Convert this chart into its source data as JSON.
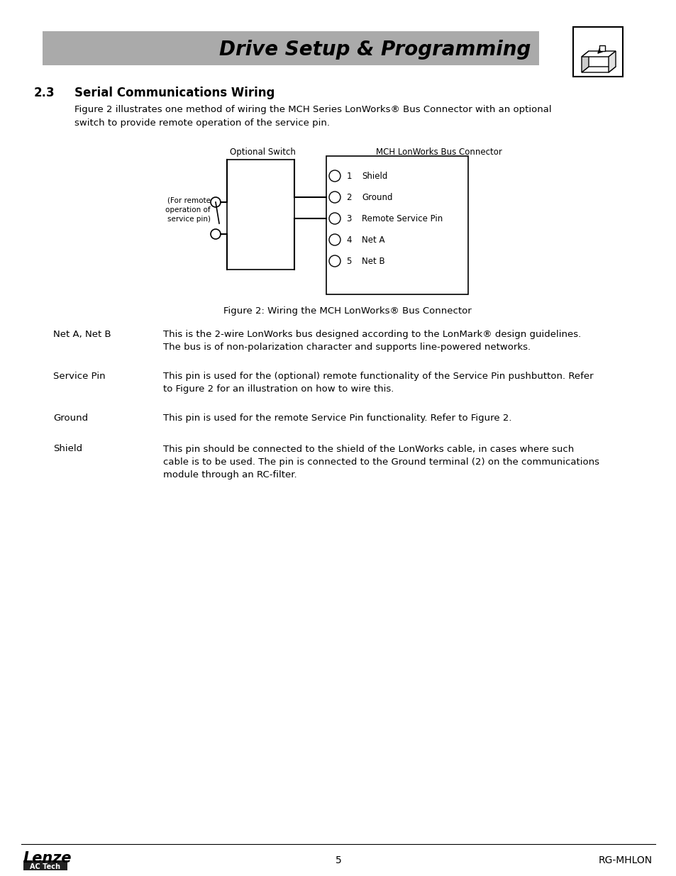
{
  "page_bg": "#ffffff",
  "header_bg": "#aaaaaa",
  "header_text": "Drive Setup & Programming",
  "header_text_color": "#000000",
  "section_number": "2.3",
  "section_title": "Serial Communications Wiring",
  "intro_text": "Figure 2 illustrates one method of wiring the MCH Series LonWorks® Bus Connector with an optional\nswitch to provide remote operation of the service pin.",
  "figure_caption": "Figure 2: Wiring the MCH LonWorks® Bus Connector",
  "optional_switch_label": "Optional Switch",
  "connector_label": "MCH LonWorks Bus Connector",
  "for_remote_label": "(For remote\noperation of\nservice pin)",
  "connector_pins": [
    {
      "num": "1",
      "name": "Shield"
    },
    {
      "num": "2",
      "name": "Ground"
    },
    {
      "num": "3",
      "name": "Remote Service Pin"
    },
    {
      "num": "4",
      "name": "Net A"
    },
    {
      "num": "5",
      "name": "Net B"
    }
  ],
  "descriptions": [
    {
      "term": "Net A, Net B",
      "text": "This is the 2-wire LonWorks bus designed according to the LonMark® design guidelines.\nThe bus is of non-polarization character and supports line-powered networks.",
      "lines": 2
    },
    {
      "term": "Service Pin",
      "text": "This pin is used for the (optional) remote functionality of the Service Pin pushbutton. Refer\nto Figure 2 for an illustration on how to wire this.",
      "lines": 2
    },
    {
      "term": "Ground",
      "text": "This pin is used for the remote Service Pin functionality. Refer to Figure 2.",
      "lines": 1
    },
    {
      "term": "Shield",
      "text": "This pin should be connected to the shield of the LonWorks cable, in cases where such\ncable is to be used. The pin is connected to the Ground terminal (2) on the communications\nmodule through an RC-filter.",
      "lines": 3
    }
  ],
  "footer_page": "5",
  "footer_right": "RG-MHLON",
  "lenze_text": "Lenze",
  "actech_text": "AC Tech"
}
